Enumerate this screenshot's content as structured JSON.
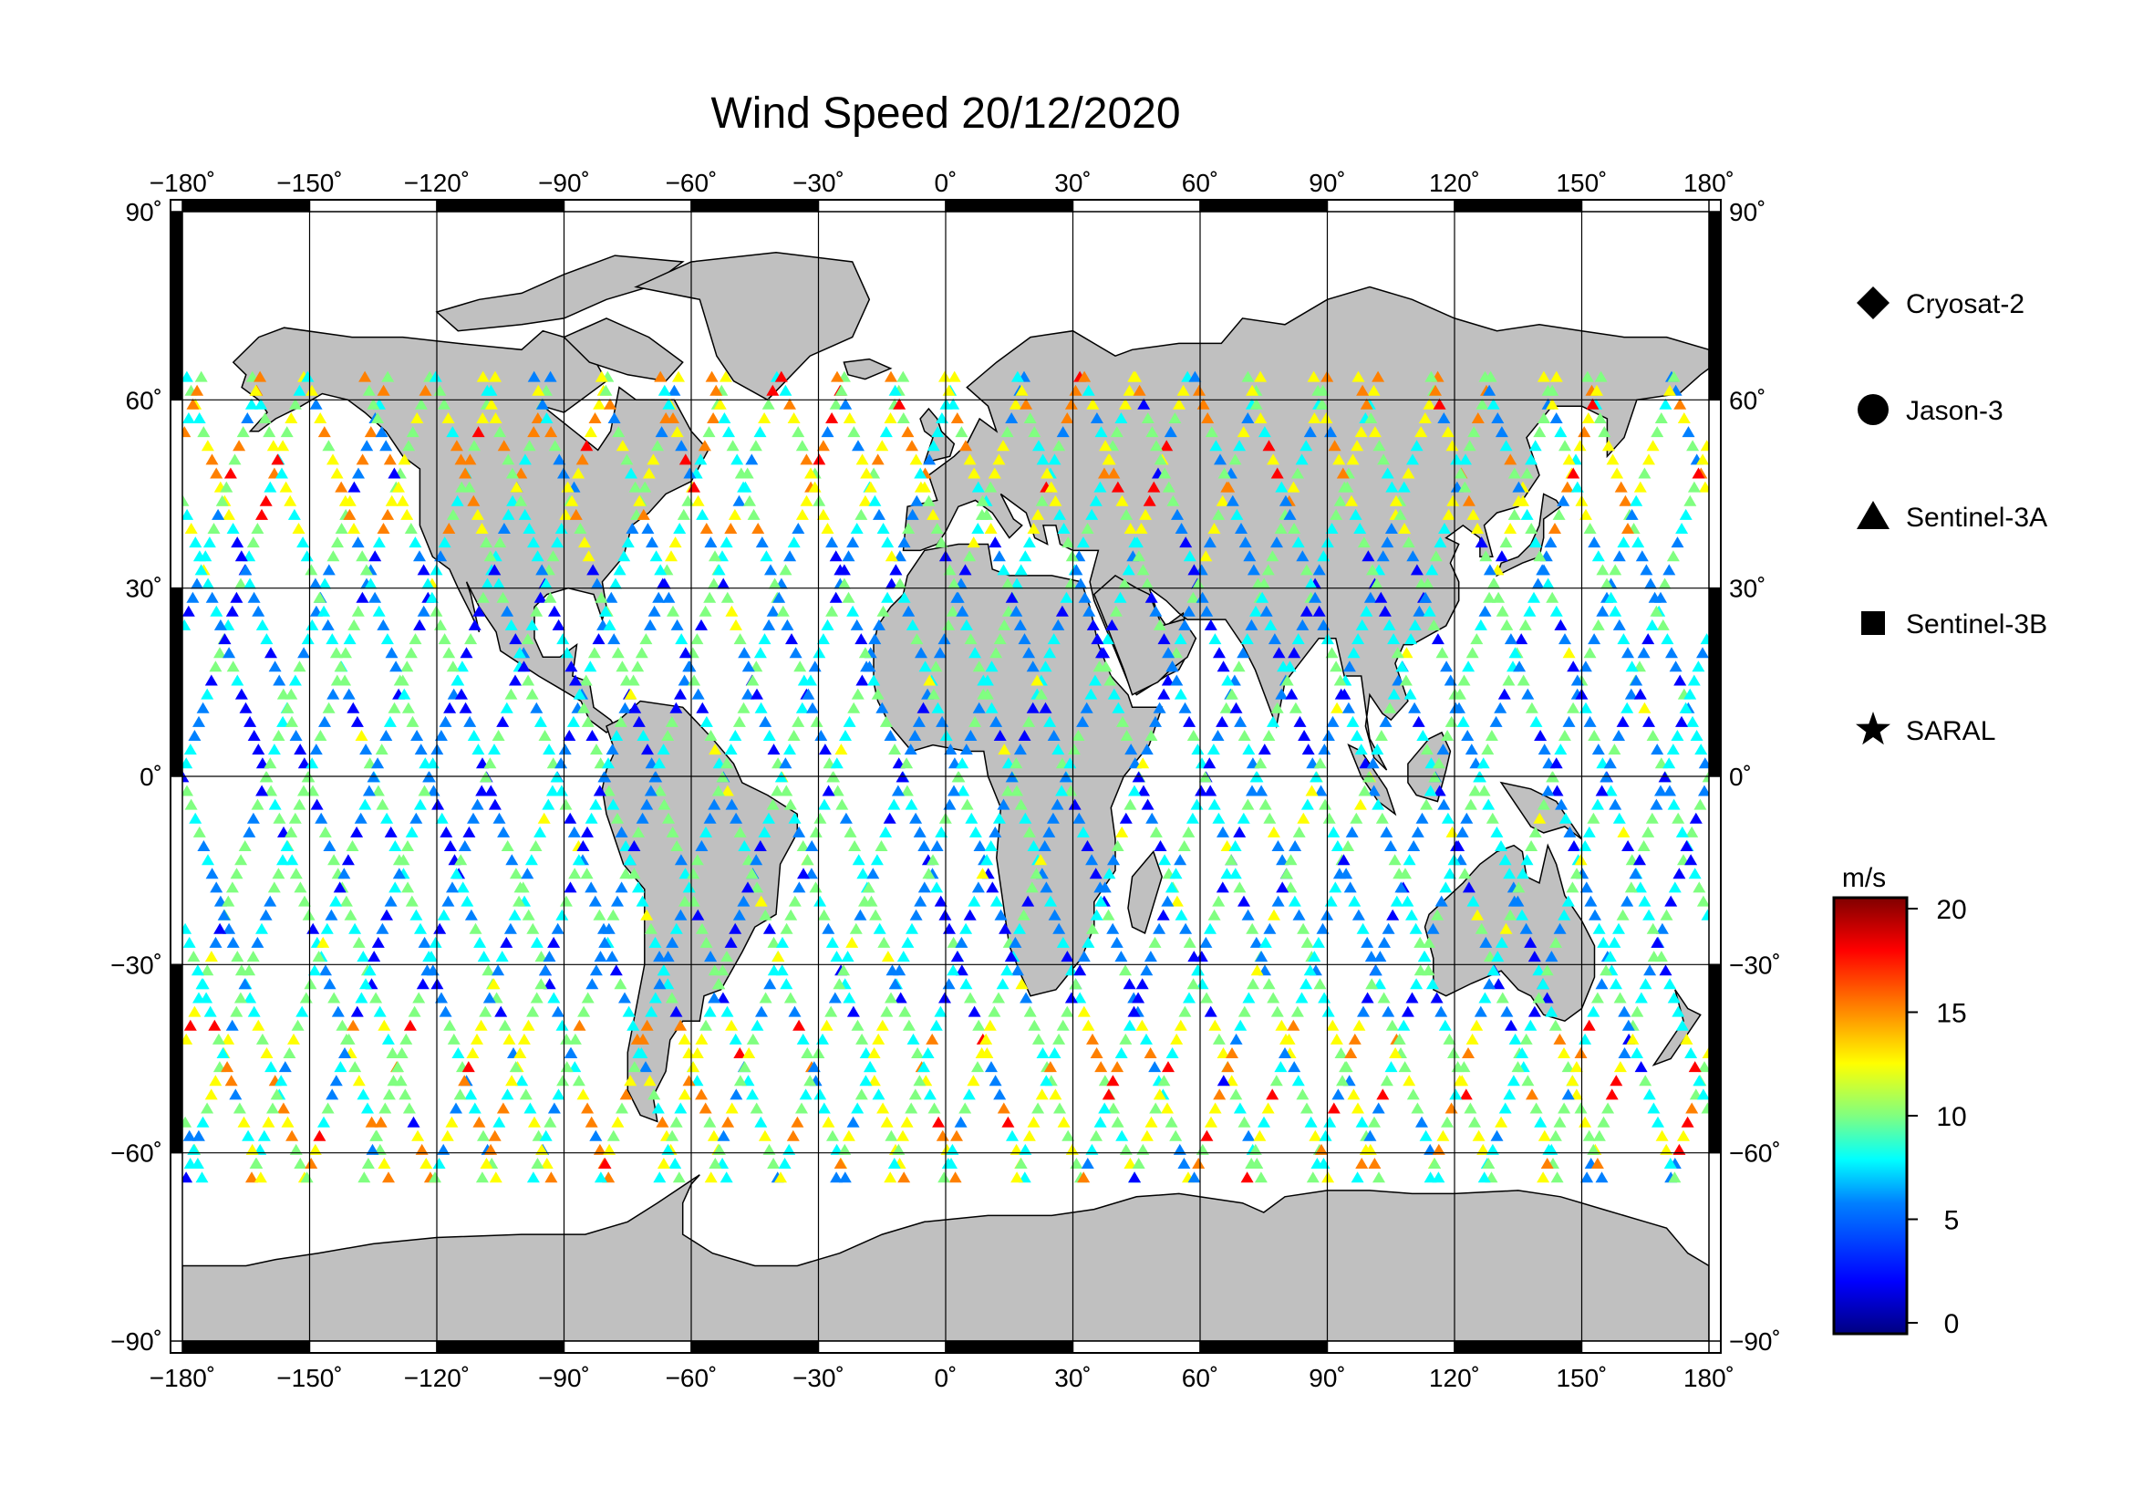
{
  "title": "Wind Speed 20/12/2020",
  "map": {
    "projection": "equirectangular",
    "lon_range": [
      -180,
      180
    ],
    "lat_range": [
      -90,
      90
    ],
    "land_color": "#c0c0c0",
    "ocean_color": "#ffffff",
    "graticule_step_deg": 30
  },
  "axes": {
    "lon_ticks": [
      "−180˚",
      "−150˚",
      "−120˚",
      "−90˚",
      "−60˚",
      "−30˚",
      "0˚",
      "30˚",
      "60˚",
      "90˚",
      "120˚",
      "150˚",
      "180˚"
    ],
    "lat_ticks": [
      "90˚",
      "60˚",
      "30˚",
      "0˚",
      "−30˚",
      "−60˚",
      "−90˚"
    ]
  },
  "legend": {
    "items": [
      {
        "label": "Cryosat-2",
        "symbol": "diamond-icon"
      },
      {
        "label": "Jason-3",
        "symbol": "circle-icon"
      },
      {
        "label": "Sentinel-3A",
        "symbol": "triangle-icon"
      },
      {
        "label": "Sentinel-3B",
        "symbol": "square-icon"
      },
      {
        "label": "SARAL",
        "symbol": "star-icon"
      }
    ]
  },
  "colorbar": {
    "unit": "m/s",
    "min": 0,
    "max": 20,
    "tick_labels": [
      "20",
      "15",
      "10",
      "5",
      "0"
    ],
    "colors": [
      "#000080",
      "#0000ff",
      "#0080ff",
      "#00ffff",
      "#80ff80",
      "#ffff00",
      "#ff8000",
      "#ff0000",
      "#800000"
    ]
  },
  "chart_data": {
    "type": "scatter",
    "title": "Wind Speed 20/12/2020",
    "xlabel": "",
    "ylabel": "",
    "xlim": [
      -180,
      180
    ],
    "ylim": [
      -90,
      90
    ],
    "colorbar_label": "m/s",
    "color_range": [
      0,
      20
    ],
    "series": [
      {
        "name": "Cryosat-2"
      },
      {
        "name": "Jason-3"
      },
      {
        "name": "Sentinel-3A"
      },
      {
        "name": "Sentinel-3B"
      },
      {
        "name": "SARAL"
      }
    ]
  }
}
